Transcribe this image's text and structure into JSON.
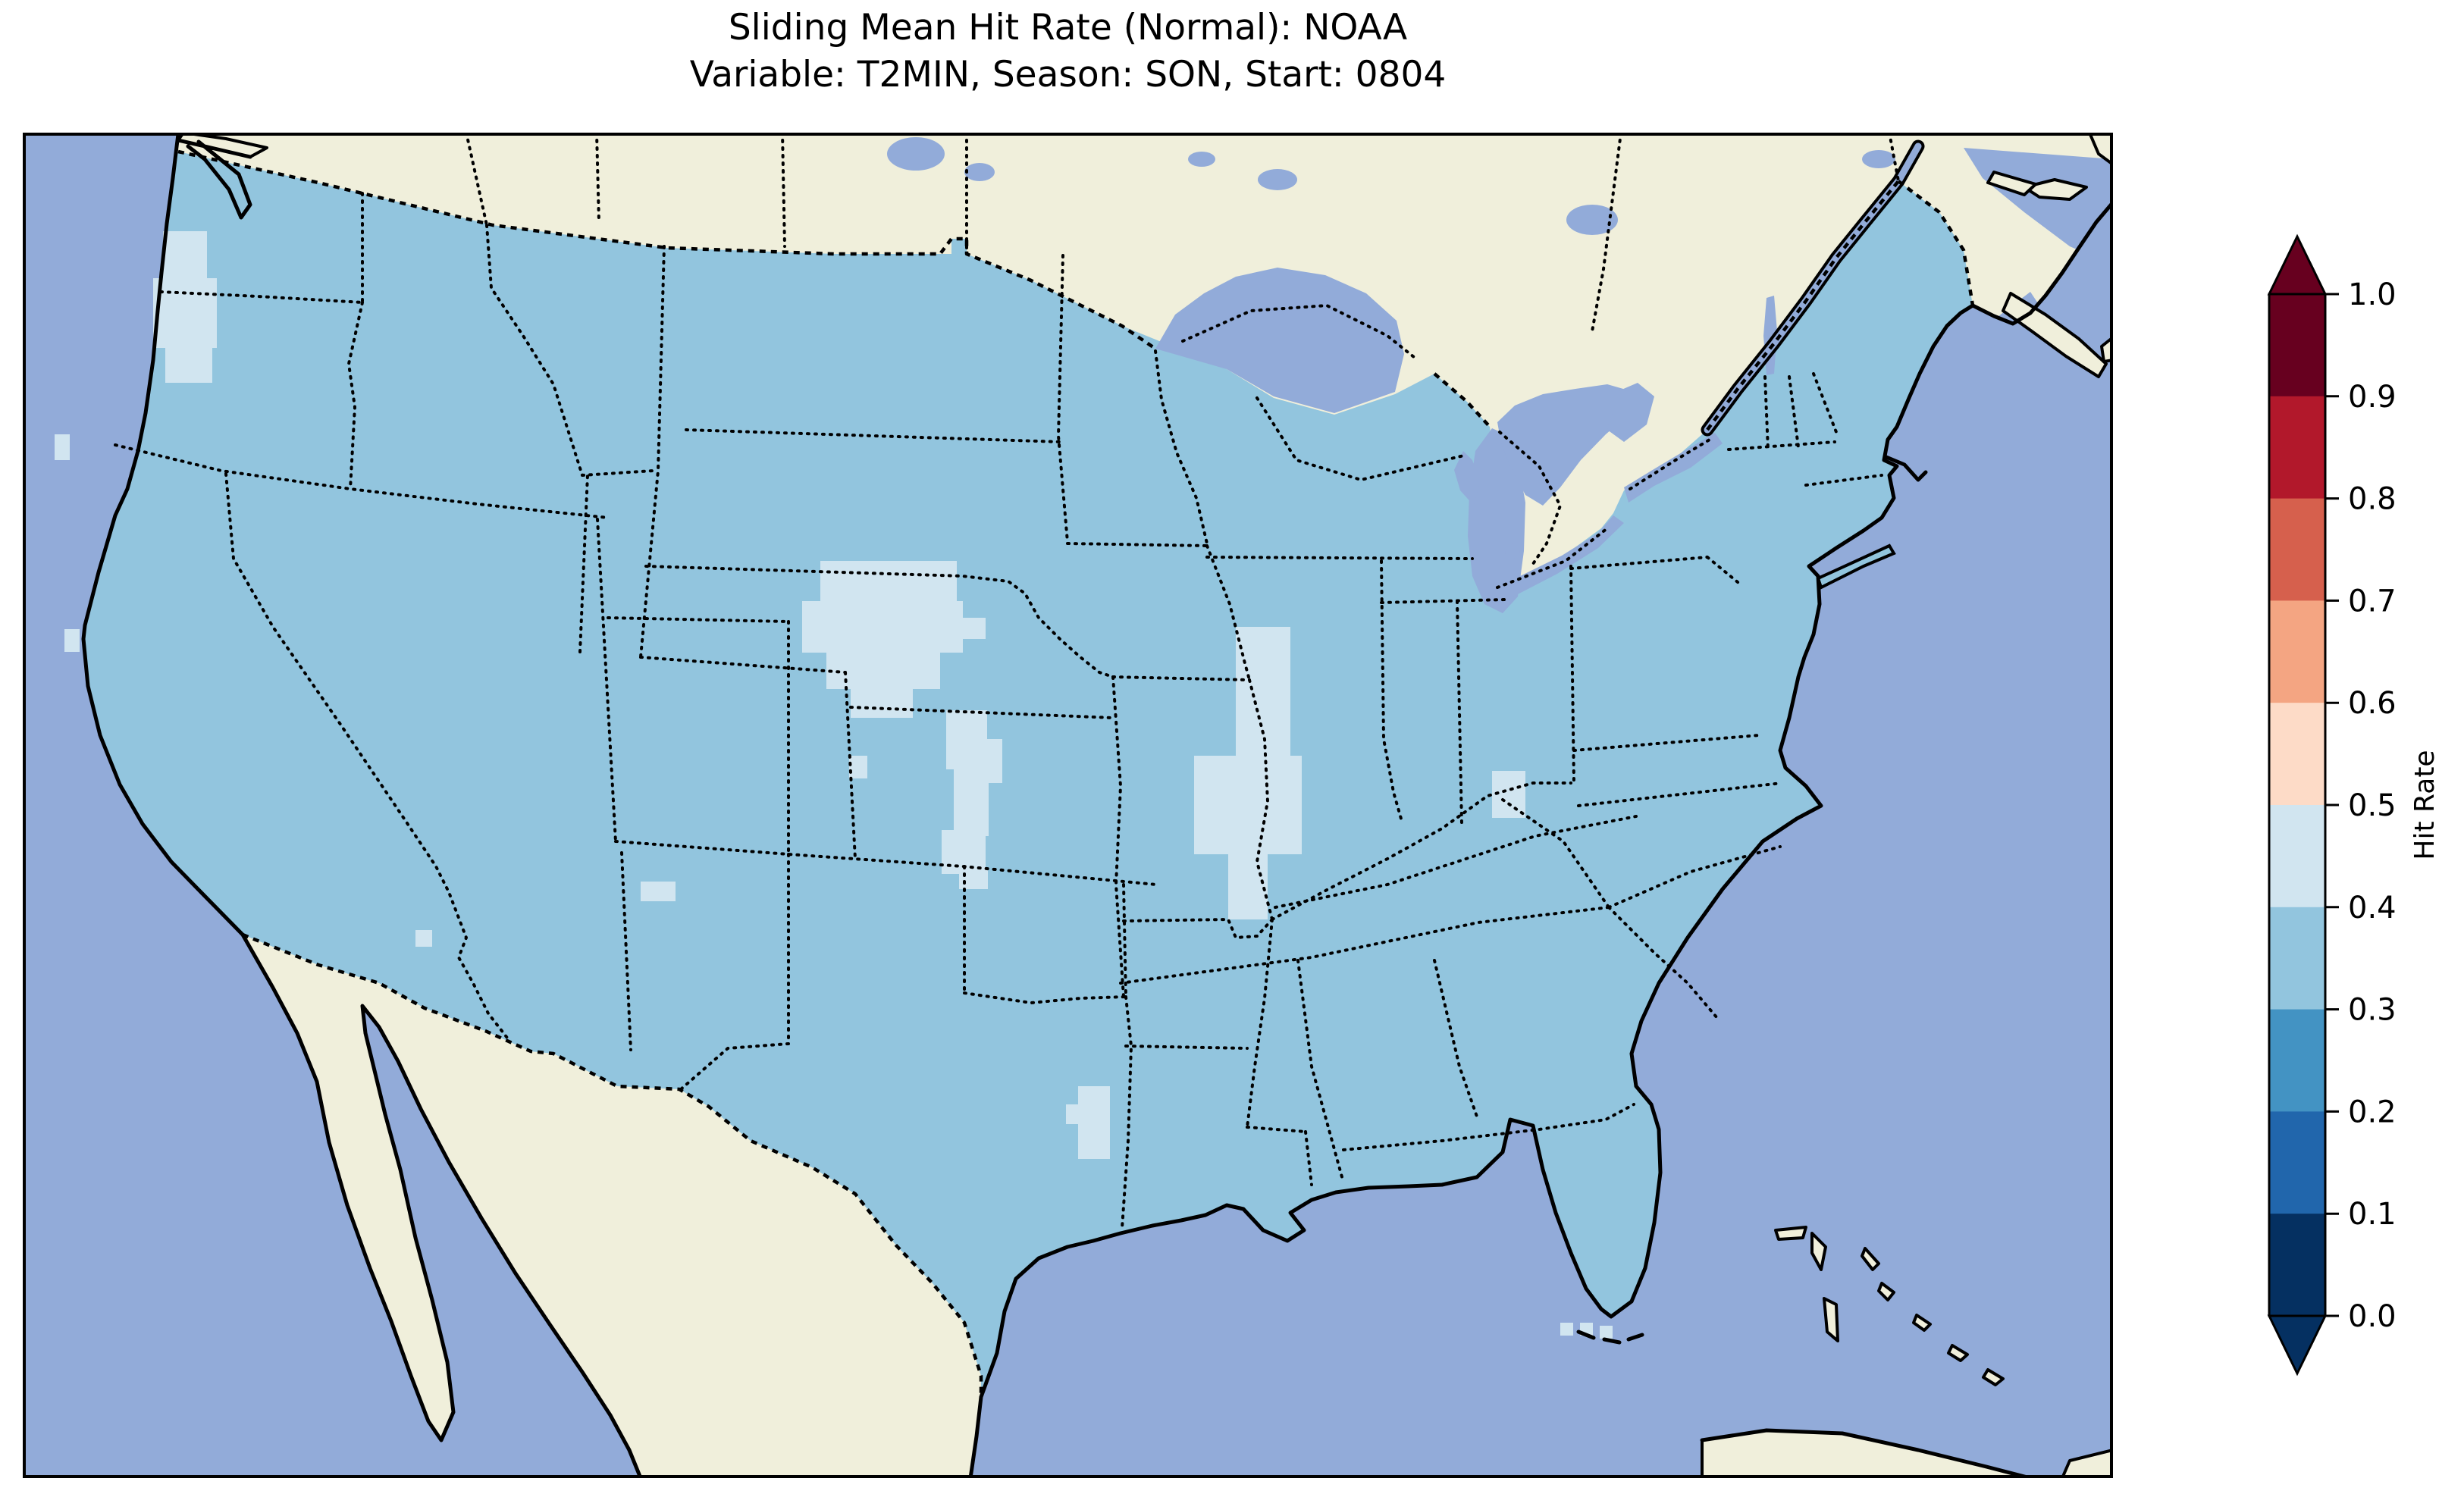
{
  "figure": {
    "title_line1": "Sliding Mean Hit Rate (Normal): NOAA",
    "title_line2": "Variable: T2MIN, Season: SON, Start: 0804"
  },
  "colorbar": {
    "label": "Hit Rate",
    "tick_labels": [
      "1.0",
      "0.9",
      "0.8",
      "0.7",
      "0.6",
      "0.5",
      "0.4",
      "0.3",
      "0.2",
      "0.1",
      "0.0"
    ],
    "bin_colors_top_down": [
      "#67001f",
      "#b2182b",
      "#d6604d",
      "#f4a582",
      "#fddbc7",
      "#d1e5f0",
      "#92c5de",
      "#4393c3",
      "#2166ac",
      "#053061"
    ],
    "extend_over_color": "#67001f",
    "extend_under_color": "#053061"
  },
  "map": {
    "colors": {
      "ocean": "#92abd9",
      "land": "#f0efdb",
      "us_fill": "#92c5de",
      "anomaly": "#d1e5f0",
      "coastline": "#000000"
    },
    "border_styles": {
      "state": "dotted",
      "country": "dashed"
    }
  },
  "chart_data": {
    "type": "heatmap",
    "title": "Sliding Mean Hit Rate (Normal): NOAA",
    "subtitle": "Variable: T2MIN, Season: SON, Start: 0804",
    "source": "NOAA",
    "variable": "T2MIN",
    "season": "SON",
    "start": "0804",
    "statistic": "Sliding Mean Hit Rate (Normal)",
    "region_shown": "Continental United States with southern Canada, Mexico, Gulf of Mexico, Bahamas and Cuba",
    "colorbar_label": "Hit Rate",
    "value_range": [
      0.0,
      1.0
    ],
    "bin_edges": [
      0.0,
      0.1,
      0.2,
      0.3,
      0.4,
      0.5,
      0.6,
      0.7,
      0.8,
      0.9,
      1.0
    ],
    "palette_low_to_high": [
      "#053061",
      "#2166ac",
      "#4393c3",
      "#92c5de",
      "#d1e5f0",
      "#fddbc7",
      "#f4a582",
      "#d6604d",
      "#b2182b",
      "#67001f"
    ],
    "colorbar_extend": "both",
    "dominant_value_bin": [
      0.3,
      0.4
    ],
    "anomaly_value_bin": [
      0.4,
      0.5
    ],
    "observations": [
      {
        "region": "Most of the continental US",
        "hit_rate_bin": "0.3-0.4"
      },
      {
        "region": "Western Washington coast",
        "hit_rate_bin": "0.4-0.5"
      },
      {
        "region": "NW Nebraska / SW South Dakota patch",
        "hit_rate_bin": "0.4-0.5"
      },
      {
        "region": "Central Nebraska-Kansas north-south strip",
        "hit_rate_bin": "0.4-0.5"
      },
      {
        "region": "Mississippi valley (western Illinois / eastern Missouri)",
        "hit_rate_bin": "0.4-0.5"
      },
      {
        "region": "Small cell in Kentucky",
        "hit_rate_bin": "0.4-0.5"
      },
      {
        "region": "SE Texas near Houston",
        "hit_rate_bin": "0.4-0.5"
      },
      {
        "region": "Isolated cells in New Mexico",
        "hit_rate_bin": "0.4-0.5"
      },
      {
        "region": "Cells south of the Florida tip (Keys)",
        "hit_rate_bin": "0.4-0.5"
      },
      {
        "region": "Isolated northern California coastal cells",
        "hit_rate_bin": "0.4-0.5"
      }
    ],
    "legend_position": "right",
    "grid": false
  }
}
